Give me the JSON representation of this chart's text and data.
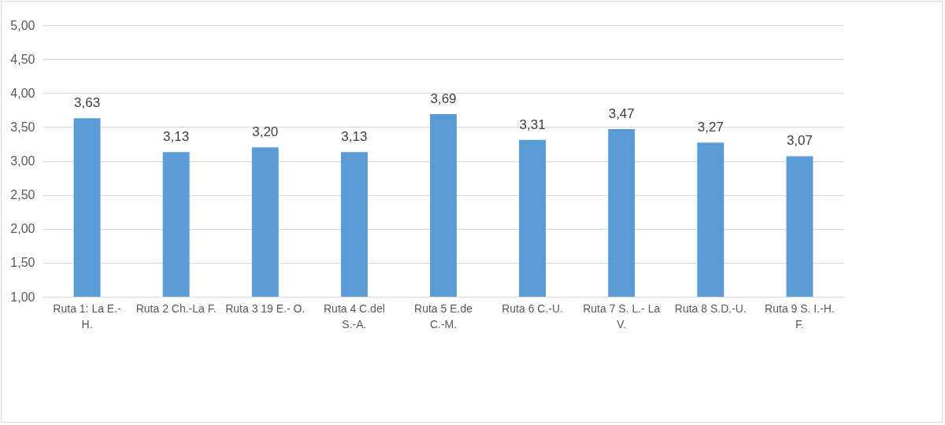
{
  "chart_data": {
    "type": "bar",
    "categories": [
      "Ruta 1: La E.- H.",
      "Ruta 2 Ch.-La F.",
      "Ruta 3 19 E.- O.",
      "Ruta 4 C.del S.-A.",
      "Ruta 5 E.de C.-M.",
      "Ruta 6 C.-U.",
      "Ruta 7 S. L.- La V.",
      "Ruta 8 S.D.-U.",
      "Ruta 9 S. I.-H. F."
    ],
    "values": [
      3.63,
      3.13,
      3.2,
      3.13,
      3.69,
      3.31,
      3.47,
      3.27,
      3.07
    ],
    "value_labels": [
      "3,63",
      "3,13",
      "3,20",
      "3,13",
      "3,69",
      "3,31",
      "3,47",
      "3,27",
      "3,07"
    ],
    "color": "#5b9bd5",
    "ylim": [
      1,
      5
    ],
    "yticks": [
      {
        "value": 1,
        "label": "1,00"
      },
      {
        "value": 1.5,
        "label": "1,50"
      },
      {
        "value": 2,
        "label": "2,00"
      },
      {
        "value": 2.5,
        "label": "2,50"
      },
      {
        "value": 3,
        "label": "3,00"
      },
      {
        "value": 3.5,
        "label": "3,50"
      },
      {
        "value": 4,
        "label": "4,00"
      },
      {
        "value": 4.5,
        "label": "4,50"
      },
      {
        "value": 5,
        "label": "5,00"
      }
    ],
    "grid": "y"
  }
}
